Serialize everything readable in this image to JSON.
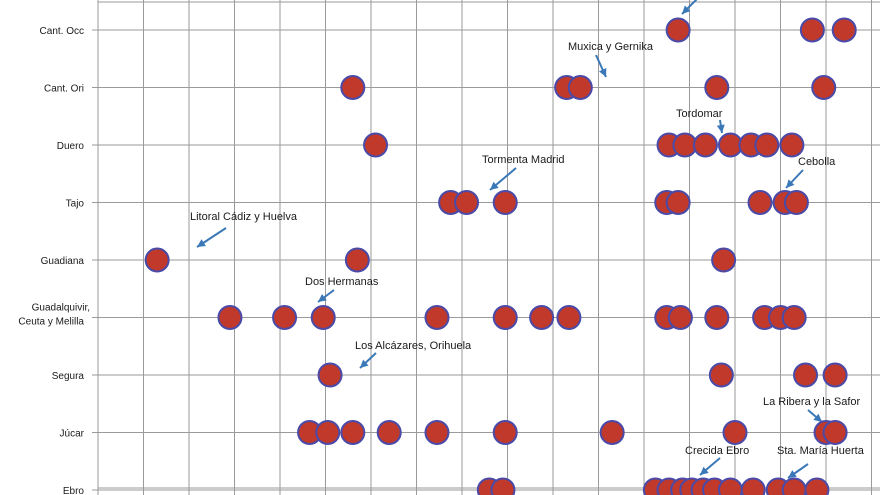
{
  "chart_data": {
    "type": "scatter",
    "title": "",
    "xlabel": "",
    "ylabel": "",
    "grid": true,
    "categories": [
      "Cant. Occ",
      "Cant. Ori",
      "Duero",
      "Tajo",
      "Guadiana",
      "Guadalquivir,\nCeuta y Melilla",
      "Segura",
      "Júcar",
      "Ebro"
    ],
    "points": [
      {
        "cat": 0,
        "x": 16.75
      },
      {
        "cat": 0,
        "x": 19.7
      },
      {
        "cat": 0,
        "x": 20.4
      },
      {
        "cat": 1,
        "x": 9.6
      },
      {
        "cat": 1,
        "x": 14.3
      },
      {
        "cat": 1,
        "x": 14.6
      },
      {
        "cat": 1,
        "x": 17.6
      },
      {
        "cat": 1,
        "x": 19.95
      },
      {
        "cat": 2,
        "x": 10.1
      },
      {
        "cat": 2,
        "x": 16.55
      },
      {
        "cat": 2,
        "x": 16.9
      },
      {
        "cat": 2,
        "x": 17.35
      },
      {
        "cat": 2,
        "x": 17.9
      },
      {
        "cat": 2,
        "x": 18.35
      },
      {
        "cat": 2,
        "x": 18.7
      },
      {
        "cat": 2,
        "x": 19.25
      },
      {
        "cat": 3,
        "x": 11.75
      },
      {
        "cat": 3,
        "x": 12.1
      },
      {
        "cat": 3,
        "x": 12.95
      },
      {
        "cat": 3,
        "x": 16.5
      },
      {
        "cat": 3,
        "x": 16.75
      },
      {
        "cat": 3,
        "x": 18.55
      },
      {
        "cat": 3,
        "x": 19.1
      },
      {
        "cat": 3,
        "x": 19.35
      },
      {
        "cat": 4,
        "x": 5.3
      },
      {
        "cat": 4,
        "x": 9.7
      },
      {
        "cat": 4,
        "x": 17.75
      },
      {
        "cat": 5,
        "x": 6.9
      },
      {
        "cat": 5,
        "x": 8.1
      },
      {
        "cat": 5,
        "x": 8.95
      },
      {
        "cat": 5,
        "x": 11.45
      },
      {
        "cat": 5,
        "x": 12.95
      },
      {
        "cat": 5,
        "x": 13.75
      },
      {
        "cat": 5,
        "x": 14.35
      },
      {
        "cat": 5,
        "x": 16.5
      },
      {
        "cat": 5,
        "x": 16.8
      },
      {
        "cat": 5,
        "x": 17.6
      },
      {
        "cat": 5,
        "x": 18.65
      },
      {
        "cat": 5,
        "x": 19.0
      },
      {
        "cat": 5,
        "x": 19.3
      },
      {
        "cat": 6,
        "x": 9.1
      },
      {
        "cat": 6,
        "x": 17.7
      },
      {
        "cat": 6,
        "x": 19.55
      },
      {
        "cat": 6,
        "x": 20.2
      },
      {
        "cat": 7,
        "x": 8.65
      },
      {
        "cat": 7,
        "x": 9.05
      },
      {
        "cat": 7,
        "x": 9.6
      },
      {
        "cat": 7,
        "x": 10.4
      },
      {
        "cat": 7,
        "x": 11.45
      },
      {
        "cat": 7,
        "x": 12.95
      },
      {
        "cat": 7,
        "x": 15.3
      },
      {
        "cat": 7,
        "x": 18.0
      },
      {
        "cat": 7,
        "x": 20.0
      },
      {
        "cat": 7,
        "x": 20.2
      },
      {
        "cat": 8,
        "x": 12.6
      },
      {
        "cat": 8,
        "x": 12.9
      },
      {
        "cat": 8,
        "x": 16.25
      },
      {
        "cat": 8,
        "x": 16.55
      },
      {
        "cat": 8,
        "x": 16.85
      },
      {
        "cat": 8,
        "x": 17.05
      },
      {
        "cat": 8,
        "x": 17.3
      },
      {
        "cat": 8,
        "x": 17.55
      },
      {
        "cat": 8,
        "x": 17.9
      },
      {
        "cat": 8,
        "x": 18.4
      },
      {
        "cat": 8,
        "x": 18.95
      },
      {
        "cat": 8,
        "x": 19.3
      },
      {
        "cat": 8,
        "x": 19.8
      }
    ],
    "annotations": [
      {
        "text": "Muxica y Gernika",
        "cat": 1
      },
      {
        "text": "Tordomar",
        "cat": 2
      },
      {
        "text": "Tormenta Madrid",
        "cat": 3
      },
      {
        "text": "Cebolla",
        "cat": 3
      },
      {
        "text": "Litoral Cádiz y Huelva",
        "cat": 4
      },
      {
        "text": "Dos Hermanas",
        "cat": 5
      },
      {
        "text": "Los Alcázares, Orihuela",
        "cat": 6
      },
      {
        "text": "La Ribera y la Safor",
        "cat": 7
      },
      {
        "text": "Crecida Ebro",
        "cat": 8
      },
      {
        "text": "Sta. María Huerta",
        "cat": 8
      }
    ]
  }
}
